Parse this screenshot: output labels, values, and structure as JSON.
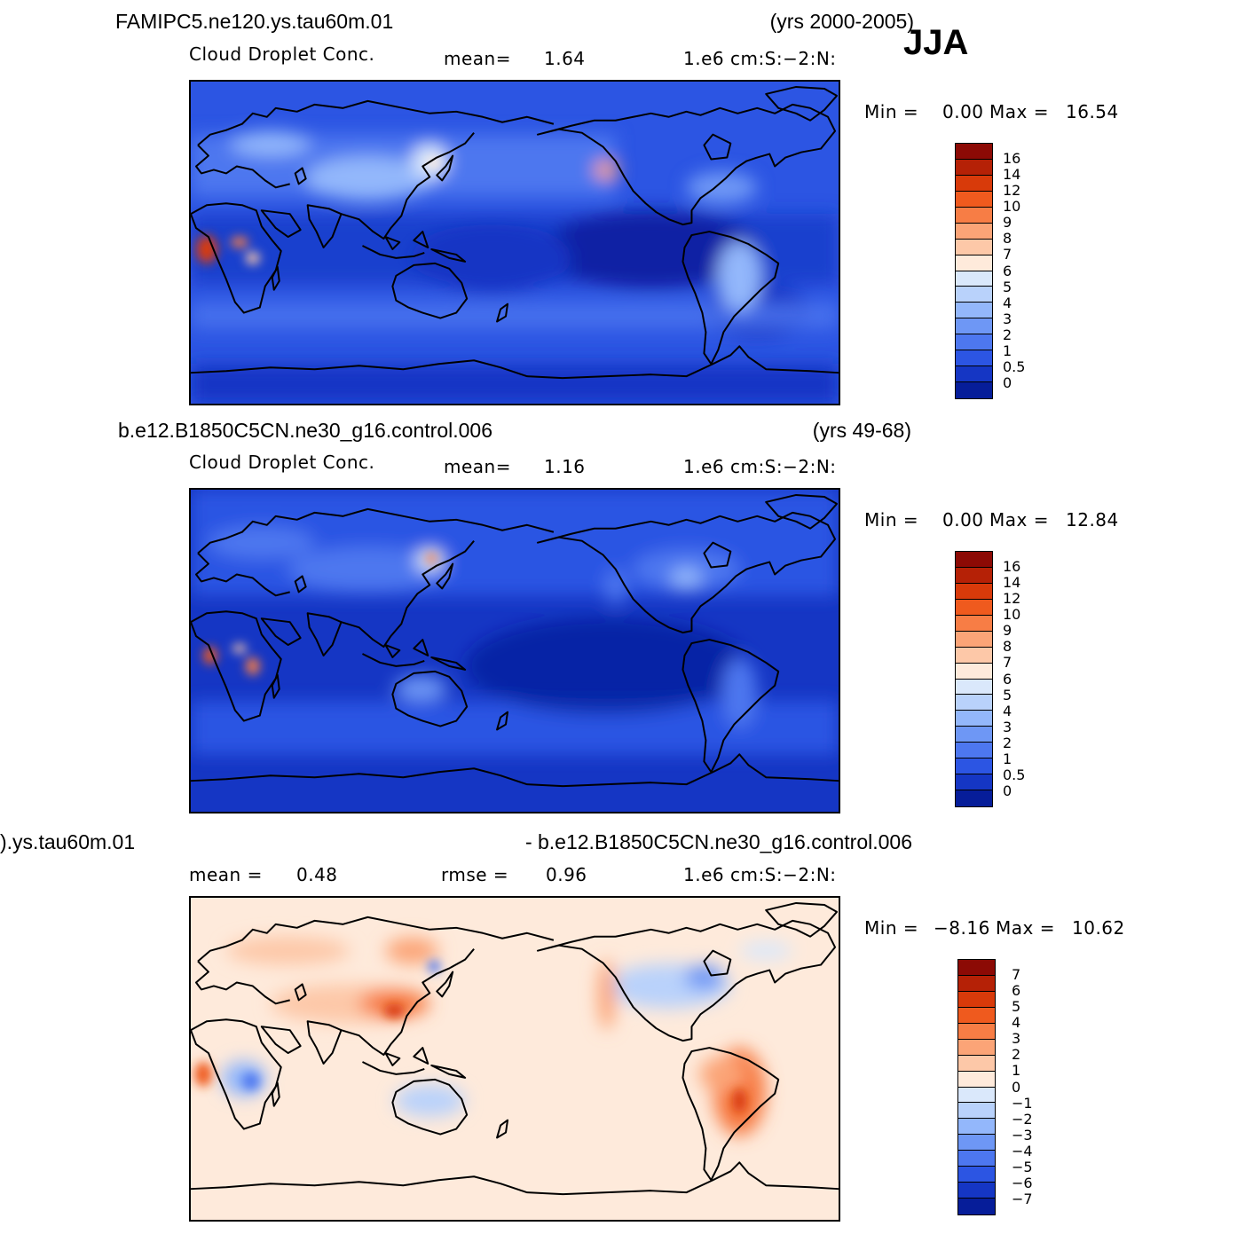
{
  "season": "JJA",
  "panels": [
    {
      "id": "p1",
      "case": "FAMIPC5.ne120.ys.tau60m.01",
      "years": "(yrs 2000-2005)",
      "variable": "Cloud  Droplet  Conc.",
      "stat1_label": "mean=",
      "stat1_value": "1.64",
      "stat2_label": "",
      "stat2_value": "",
      "units": "1.e6  cm:S:−2:N:",
      "min_label": "Min  =",
      "min_value": "0.00",
      "max_label": "Max  =",
      "max_value": "16.54",
      "colorbar": {
        "labels": [
          "16",
          "14",
          "12",
          "10",
          "9",
          "8",
          "7",
          "6",
          "5",
          "4",
          "3",
          "2",
          "1",
          "0.5",
          "0"
        ],
        "colors": [
          "#8c0a05",
          "#b52106",
          "#d83a0a",
          "#ef5a1e",
          "#f77d45",
          "#fba477",
          "#fdc8a8",
          "#feeadb",
          "#dae8fb",
          "#b9d2fb",
          "#93b7fb",
          "#6e97f5",
          "#4d77ef",
          "#2c55e3",
          "#1536c4",
          "#061d99"
        ]
      }
    },
    {
      "id": "p2",
      "case": "b.e12.B1850C5CN.ne30_g16.control.006",
      "years": "(yrs 49-68)",
      "variable": "Cloud  Droplet  Conc.",
      "stat1_label": "mean=",
      "stat1_value": "1.16",
      "stat2_label": "",
      "stat2_value": "",
      "units": "1.e6  cm:S:−2:N:",
      "min_label": "Min  =",
      "min_value": "0.00",
      "max_label": "Max  =",
      "max_value": "12.84",
      "colorbar": {
        "labels": [
          "16",
          "14",
          "12",
          "10",
          "9",
          "8",
          "7",
          "6",
          "5",
          "4",
          "3",
          "2",
          "1",
          "0.5",
          "0"
        ],
        "colors": [
          "#8c0a05",
          "#b52106",
          "#d83a0a",
          "#ef5a1e",
          "#f77d45",
          "#fba477",
          "#fdc8a8",
          "#feeadb",
          "#dae8fb",
          "#b9d2fb",
          "#93b7fb",
          "#6e97f5",
          "#4d77ef",
          "#2c55e3",
          "#1536c4",
          "#061d99"
        ]
      }
    },
    {
      "id": "p3",
      "case": ").ys.tau60m.01",
      "years": "- b.e12.B1850C5CN.ne30_g16.control.006",
      "variable": "",
      "stat1_label": "mean  =",
      "stat1_value": "0.48",
      "stat2_label": "rmse  =",
      "stat2_value": "0.96",
      "units": "1.e6  cm:S:−2:N:",
      "min_label": "Min  =",
      "min_value": "−8.16",
      "max_label": "Max  =",
      "max_value": "10.62",
      "colorbar": {
        "labels": [
          "7",
          "6",
          "5",
          "4",
          "3",
          "2",
          "1",
          "0",
          "−1",
          "−2",
          "−3",
          "−4",
          "−5",
          "−6",
          "−7"
        ],
        "colors": [
          "#8c0a05",
          "#b52106",
          "#d83a0a",
          "#ef5a1e",
          "#f77d45",
          "#fba477",
          "#fdc8a8",
          "#feeadb",
          "#dae8fb",
          "#b9d2fb",
          "#93b7fb",
          "#6e97f5",
          "#4d77ef",
          "#2c55e3",
          "#1536c4",
          "#061d99"
        ]
      }
    }
  ]
}
